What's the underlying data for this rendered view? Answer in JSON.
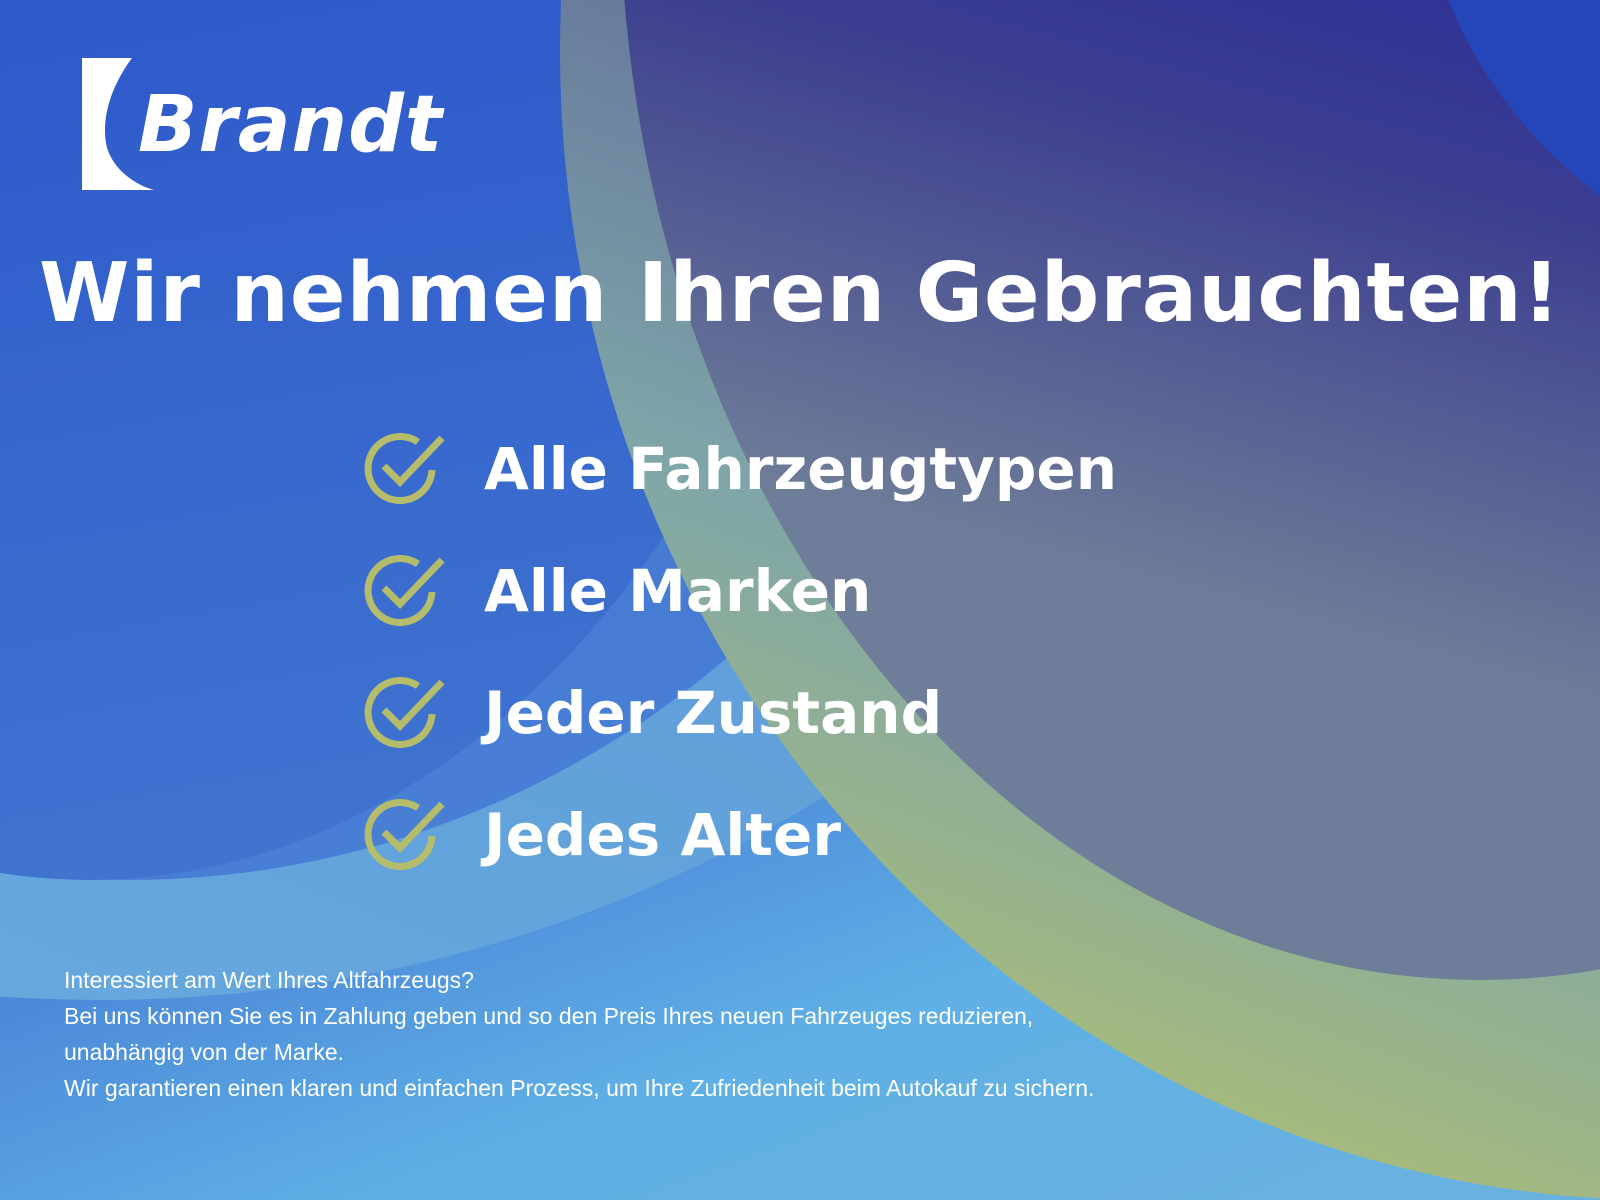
{
  "brand": {
    "name": "Brandt",
    "logo_color": "#ffffff"
  },
  "headline": "Wir nehmen Ihren Gebrauchten!",
  "features": [
    {
      "icon": "check-circle-icon",
      "label": "Alle Fahrzeugtypen"
    },
    {
      "icon": "check-circle-icon",
      "label": "Alle Marken"
    },
    {
      "icon": "check-circle-icon",
      "label": "Jeder Zustand"
    },
    {
      "icon": "check-circle-icon",
      "label": "Jedes Alter"
    }
  ],
  "footer": [
    "Interessiert am Wert Ihres Altfahrzeugs?",
    "Bei uns können Sie es in Zahlung geben und so den Preis Ihres neuen Fahrzeuges reduzieren,",
    "unabhängig von der Marke.",
    "Wir garantieren einen klaren und einfachen Prozess, um Ihre Zufriedenheit beim Autokauf zu sichern."
  ],
  "colors": {
    "check": "#b5bd6c",
    "text": "#ffffff"
  }
}
